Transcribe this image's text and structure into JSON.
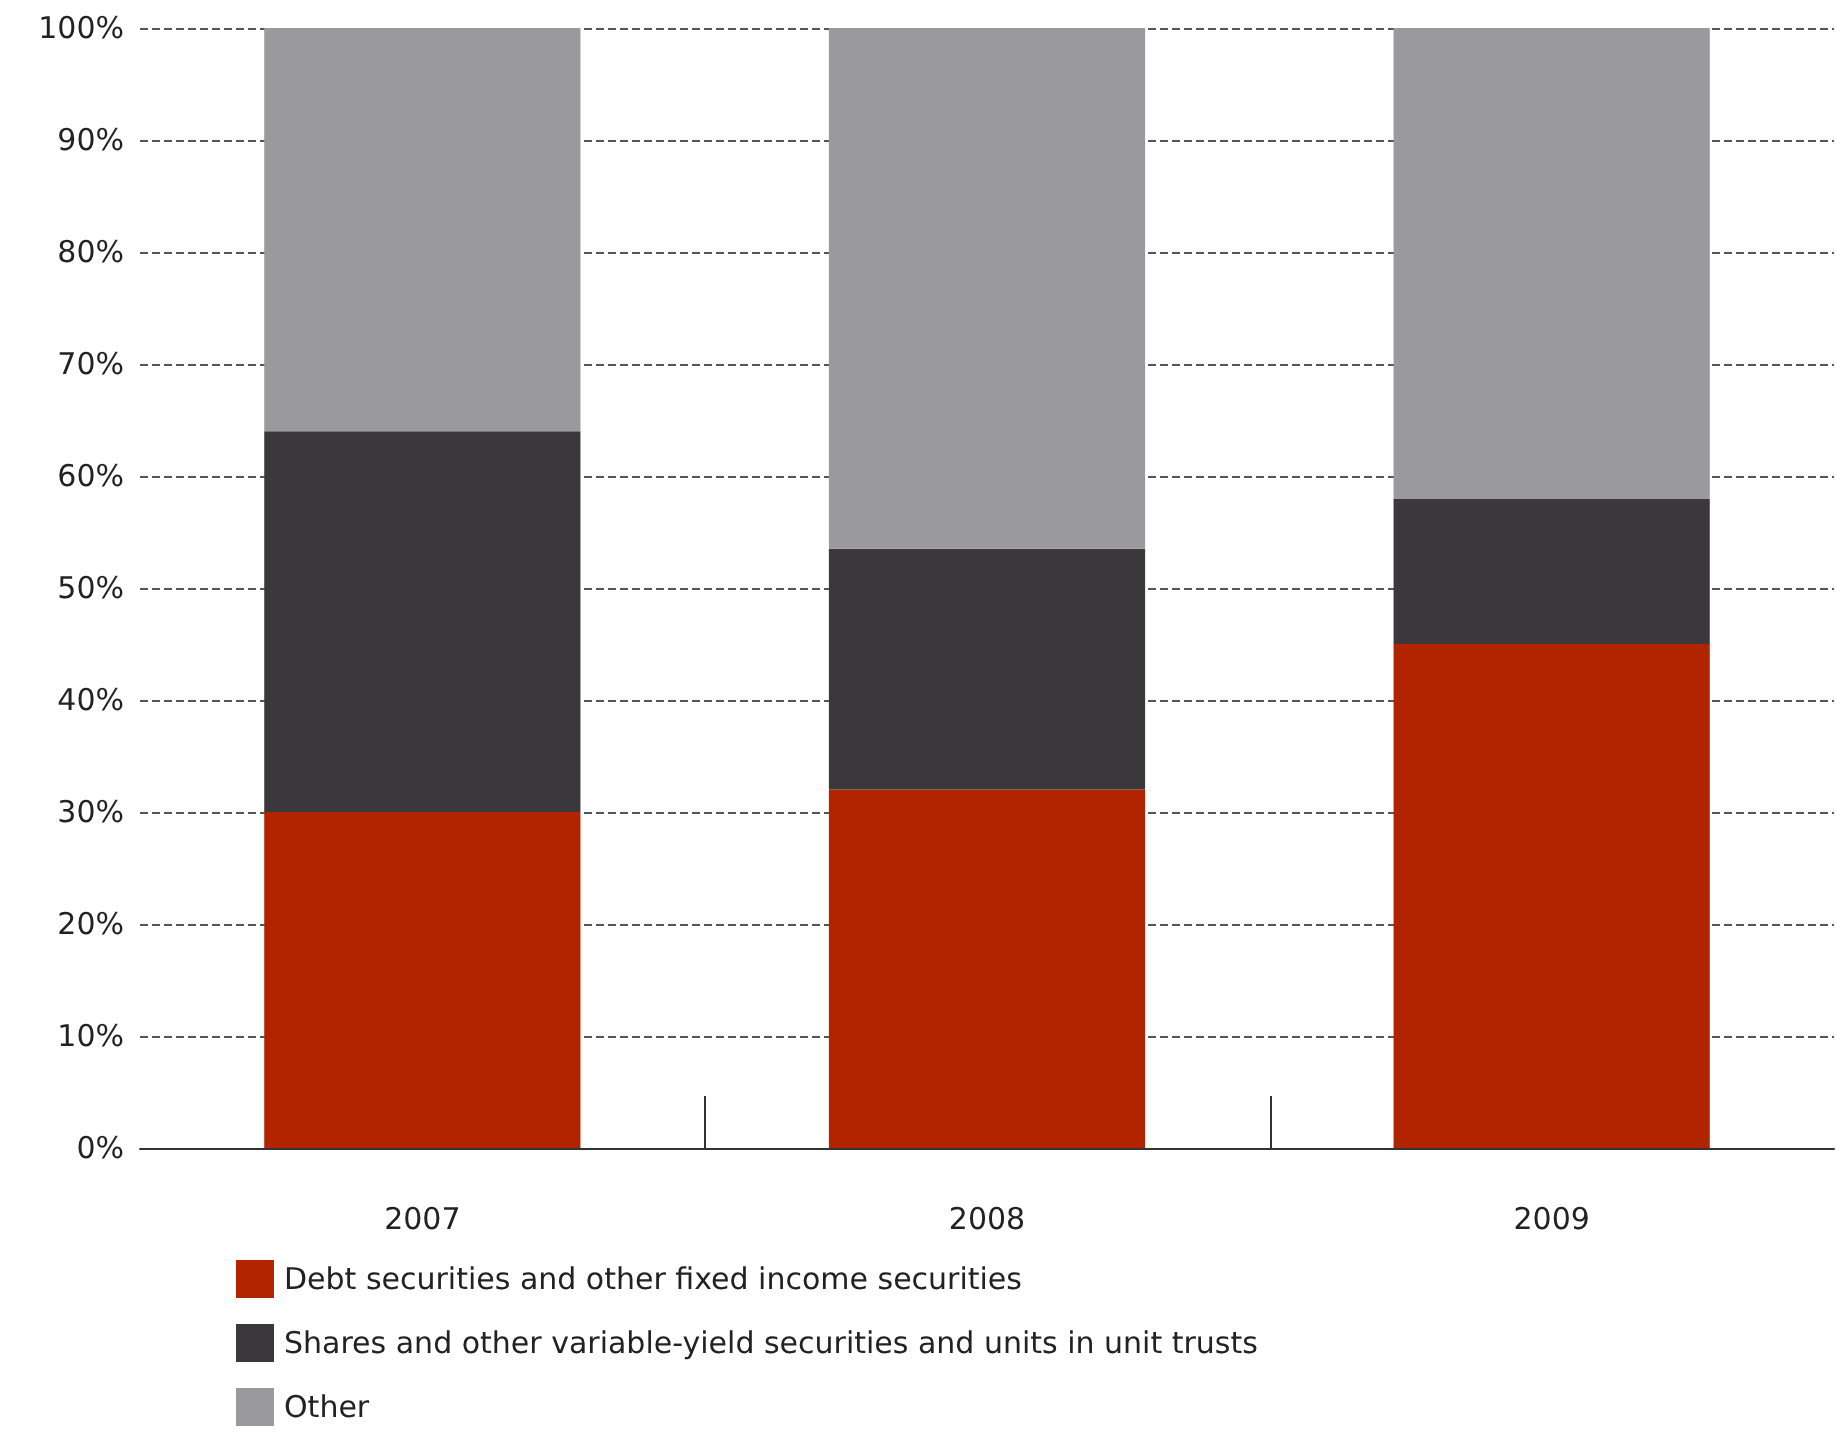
{
  "chart_data": {
    "type": "bar",
    "stacked": true,
    "categories": [
      "2007",
      "2008",
      "2009"
    ],
    "series": [
      {
        "name": "Debt securities and other fixed income securities",
        "color": "#b22400",
        "values": [
          30,
          32,
          45
        ]
      },
      {
        "name": "Shares and other variable-yield securities and units in unit trusts",
        "color": "#3a383b",
        "values": [
          34,
          21.5,
          13
        ]
      },
      {
        "name": "Other",
        "color": "#9a999e",
        "values": [
          36,
          46.5,
          42
        ]
      }
    ],
    "ylim": [
      0,
      100
    ],
    "yticks": [
      {
        "value": 0,
        "label": "0%"
      },
      {
        "value": 10,
        "label": "10%"
      },
      {
        "value": 20,
        "label": "20%"
      },
      {
        "value": 30,
        "label": "30%"
      },
      {
        "value": 40,
        "label": "40%"
      },
      {
        "value": 50,
        "label": "50%"
      },
      {
        "value": 60,
        "label": "60%"
      },
      {
        "value": 70,
        "label": "70%"
      },
      {
        "value": 80,
        "label": "80%"
      },
      {
        "value": 90,
        "label": "90%"
      },
      {
        "value": 100,
        "label": "100%"
      }
    ],
    "grid": "y",
    "legend": "bottom left"
  }
}
